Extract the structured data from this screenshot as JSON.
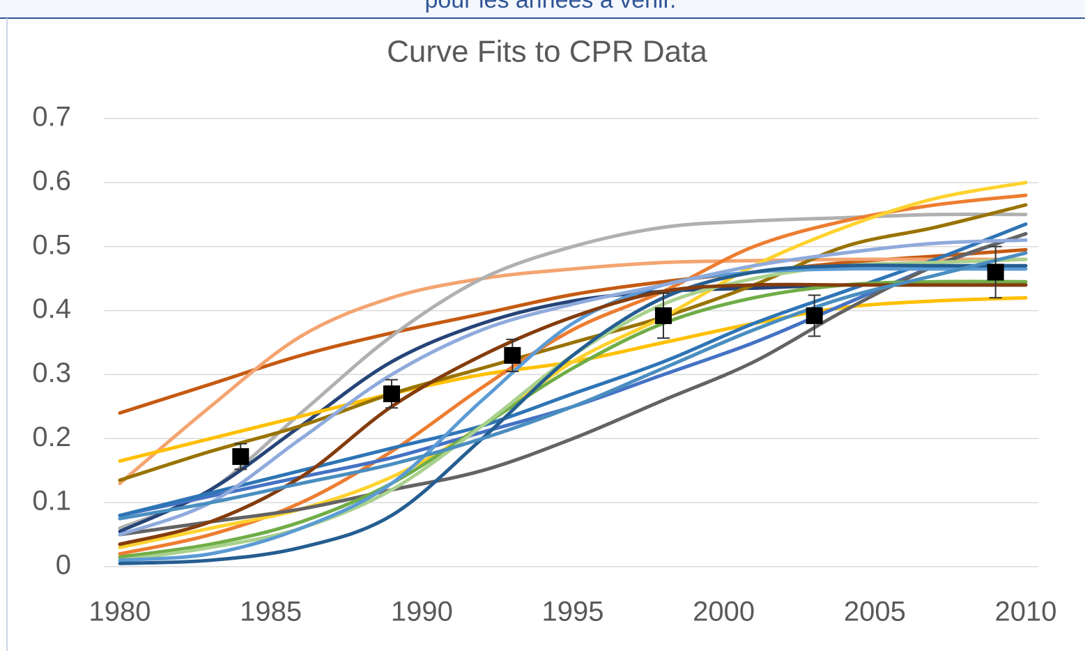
{
  "caption": "pour les années à venir.",
  "chart_data": {
    "type": "line",
    "title": "Curve Fits to CPR Data",
    "x": [
      1980,
      1983,
      1986,
      1989,
      1992,
      1995,
      1998,
      2001,
      2004,
      2007,
      2010
    ],
    "xlim": [
      1980,
      2010
    ],
    "xticks": [
      1980,
      1985,
      1990,
      1995,
      2000,
      2005,
      2010
    ],
    "ylim": [
      0,
      0.7
    ],
    "yticks": [
      0,
      0.1,
      0.2,
      0.3,
      0.4,
      0.5,
      0.6,
      0.7
    ],
    "grid": true,
    "series": [
      {
        "color": "#c55a11",
        "values": [
          0.24,
          0.285,
          0.33,
          0.365,
          0.395,
          0.425,
          0.445,
          0.46,
          0.475,
          0.485,
          0.495
        ]
      },
      {
        "color": "#f4a470",
        "values": [
          0.13,
          0.25,
          0.36,
          0.42,
          0.45,
          0.465,
          0.475,
          0.478,
          0.48,
          0.48,
          0.48
        ]
      },
      {
        "color": "#b0b0b0",
        "values": [
          0.06,
          0.12,
          0.24,
          0.36,
          0.45,
          0.5,
          0.53,
          0.54,
          0.545,
          0.55,
          0.55
        ]
      },
      {
        "color": "#264478",
        "values": [
          0.055,
          0.12,
          0.22,
          0.32,
          0.38,
          0.415,
          0.43,
          0.435,
          0.44,
          0.44,
          0.44
        ]
      },
      {
        "color": "#ffc000",
        "values": [
          0.165,
          0.2,
          0.235,
          0.27,
          0.3,
          0.32,
          0.35,
          0.38,
          0.405,
          0.415,
          0.42
        ]
      },
      {
        "color": "#997300",
        "values": [
          0.135,
          0.18,
          0.22,
          0.27,
          0.31,
          0.35,
          0.39,
          0.44,
          0.5,
          0.53,
          0.565
        ]
      },
      {
        "color": "#ed7d31",
        "values": [
          0.02,
          0.05,
          0.1,
          0.18,
          0.28,
          0.37,
          0.43,
          0.5,
          0.54,
          0.565,
          0.58
        ]
      },
      {
        "color": "#ffd22e",
        "values": [
          0.03,
          0.06,
          0.09,
          0.14,
          0.22,
          0.32,
          0.39,
          0.47,
          0.53,
          0.575,
          0.6
        ]
      },
      {
        "color": "#4472c4",
        "values": [
          0.08,
          0.11,
          0.14,
          0.17,
          0.21,
          0.25,
          0.3,
          0.35,
          0.41,
          0.47,
          0.52
        ]
      },
      {
        "color": "#2e75b6",
        "values": [
          0.08,
          0.115,
          0.15,
          0.185,
          0.22,
          0.27,
          0.32,
          0.38,
          0.43,
          0.48,
          0.535
        ]
      },
      {
        "color": "#636363",
        "values": [
          0.05,
          0.07,
          0.09,
          0.12,
          0.15,
          0.2,
          0.26,
          0.32,
          0.4,
          0.47,
          0.52
        ]
      },
      {
        "color": "#70ad47",
        "values": [
          0.015,
          0.035,
          0.07,
          0.13,
          0.22,
          0.31,
          0.38,
          0.42,
          0.44,
          0.445,
          0.445
        ]
      },
      {
        "color": "#a9d18e",
        "values": [
          0.01,
          0.03,
          0.06,
          0.12,
          0.22,
          0.33,
          0.41,
          0.45,
          0.47,
          0.475,
          0.48
        ]
      },
      {
        "color": "#5b9bd5",
        "values": [
          0.01,
          0.02,
          0.06,
          0.13,
          0.26,
          0.38,
          0.44,
          0.46,
          0.465,
          0.465,
          0.465
        ]
      },
      {
        "color": "#255e91",
        "values": [
          0.005,
          0.01,
          0.03,
          0.08,
          0.2,
          0.33,
          0.42,
          0.46,
          0.47,
          0.47,
          0.47
        ]
      },
      {
        "color": "#843c0c",
        "values": [
          0.035,
          0.07,
          0.14,
          0.25,
          0.33,
          0.39,
          0.43,
          0.44,
          0.44,
          0.44,
          0.44
        ]
      },
      {
        "color": "#8faadc",
        "values": [
          0.05,
          0.1,
          0.2,
          0.3,
          0.37,
          0.41,
          0.44,
          0.47,
          0.49,
          0.505,
          0.51
        ]
      },
      {
        "color": "#4a8ec0",
        "values": [
          0.075,
          0.1,
          0.13,
          0.16,
          0.2,
          0.25,
          0.31,
          0.37,
          0.42,
          0.455,
          0.49
        ]
      }
    ],
    "points": {
      "color": "#000000",
      "x": [
        1984,
        1989,
        1993,
        1998,
        2003,
        2009
      ],
      "values": [
        0.172,
        0.27,
        0.33,
        0.392,
        0.392,
        0.46
      ],
      "errors": [
        0.02,
        0.022,
        0.025,
        0.035,
        0.032,
        0.04
      ]
    }
  }
}
